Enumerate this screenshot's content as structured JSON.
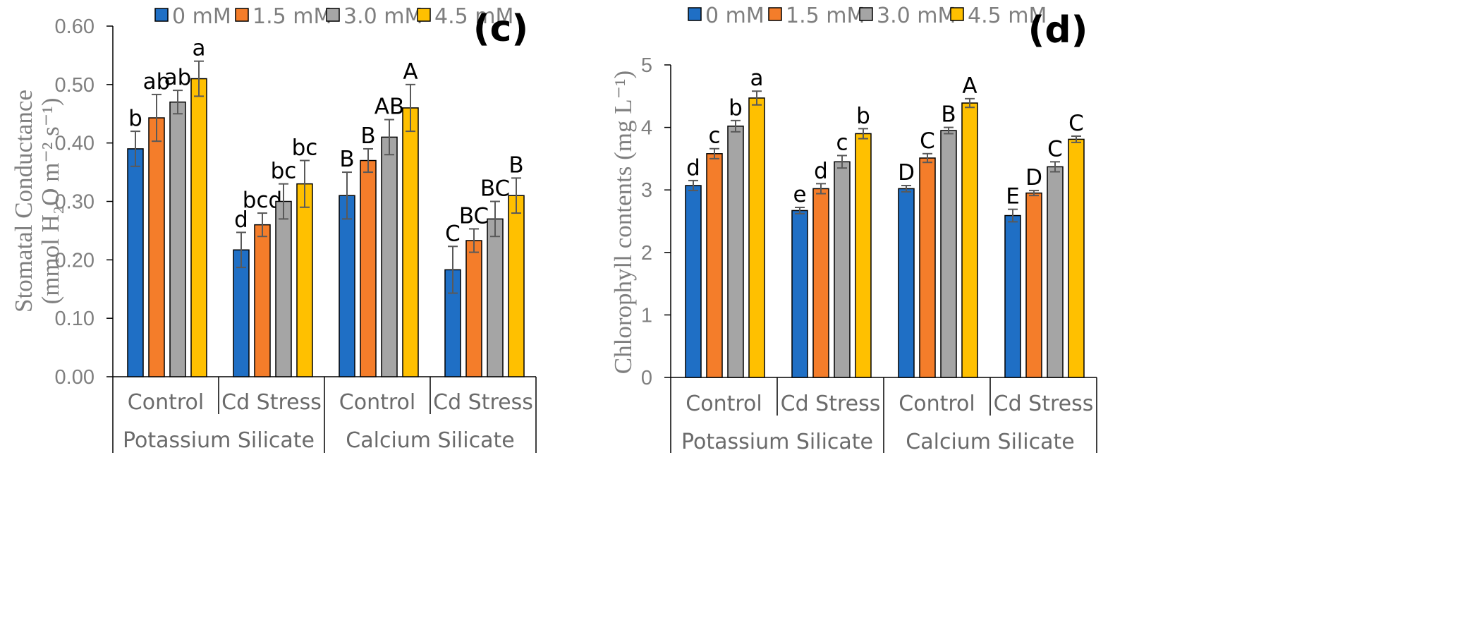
{
  "figure": {
    "legend": [
      "0 mM",
      "1.5 mM",
      "3.0 mM",
      "4.5 mM"
    ],
    "colors": [
      "#1f6fc5",
      "#f47d2a",
      "#a5a5a5",
      "#ffc000"
    ]
  },
  "chart_data": [
    {
      "type": "bar",
      "panel_label": "(c)",
      "title": "",
      "ylabel_line1": "Stomatal Conductance",
      "ylabel_line2": "(mmol H₂O m⁻² s⁻¹)",
      "ylim": [
        0,
        0.6
      ],
      "yticks": [
        "0.00",
        "0.10",
        "0.20",
        "0.30",
        "0.40",
        "0.50",
        "0.60"
      ],
      "groups": [
        "Potassium Silicate",
        "Calcium Silicate"
      ],
      "categories": [
        "Control",
        "Cd Stress",
        "Control",
        "Cd Stress"
      ],
      "series": [
        {
          "name": "0 mM",
          "values": [
            0.39,
            0.217,
            0.31,
            0.183
          ],
          "errors": [
            0.03,
            0.03,
            0.04,
            0.04
          ],
          "labels": [
            "b",
            "d",
            "B",
            "C"
          ]
        },
        {
          "name": "1.5 mM",
          "values": [
            0.443,
            0.26,
            0.37,
            0.233
          ],
          "errors": [
            0.04,
            0.02,
            0.02,
            0.02
          ],
          "labels": [
            "ab",
            "bcd",
            "B",
            "BC"
          ]
        },
        {
          "name": "3.0 mM",
          "values": [
            0.47,
            0.3,
            0.41,
            0.27
          ],
          "errors": [
            0.02,
            0.03,
            0.03,
            0.03
          ],
          "labels": [
            "ab",
            "bc",
            "AB",
            "BC"
          ]
        },
        {
          "name": "4.5 mM",
          "values": [
            0.51,
            0.33,
            0.46,
            0.31
          ],
          "errors": [
            0.03,
            0.04,
            0.04,
            0.03
          ],
          "labels": [
            "a",
            "bc",
            "A",
            "B"
          ]
        }
      ]
    },
    {
      "type": "bar",
      "panel_label": "(d)",
      "title": "",
      "ylabel_line1": "Chlorophyll contents (mg L⁻¹)",
      "ylabel_line2": "",
      "ylim": [
        0,
        5
      ],
      "yticks": [
        "0",
        "1",
        "2",
        "3",
        "4",
        "5"
      ],
      "groups": [
        "Potassium Silicate",
        "Calcium Silicate"
      ],
      "categories": [
        "Control",
        "Cd Stress",
        "Control",
        "Cd Stress"
      ],
      "series": [
        {
          "name": "0 mM",
          "values": [
            3.07,
            2.67,
            3.02,
            2.59
          ],
          "errors": [
            0.08,
            0.05,
            0.05,
            0.1
          ],
          "labels": [
            "d",
            "e",
            "D",
            "E"
          ]
        },
        {
          "name": "1.5 mM",
          "values": [
            3.58,
            3.02,
            3.51,
            2.95
          ],
          "errors": [
            0.08,
            0.08,
            0.07,
            0.04
          ],
          "labels": [
            "c",
            "d",
            "C",
            "D"
          ]
        },
        {
          "name": "3.0 mM",
          "values": [
            4.02,
            3.45,
            3.95,
            3.37
          ],
          "errors": [
            0.09,
            0.1,
            0.05,
            0.08
          ],
          "labels": [
            "b",
            "c",
            "B",
            "C"
          ]
        },
        {
          "name": "4.5 mM",
          "values": [
            4.47,
            3.9,
            4.39,
            3.81
          ],
          "errors": [
            0.11,
            0.08,
            0.07,
            0.05
          ],
          "labels": [
            "a",
            "b",
            "A",
            "C"
          ]
        }
      ]
    }
  ]
}
